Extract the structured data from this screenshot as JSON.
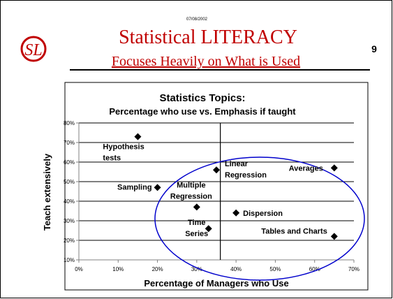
{
  "date": "07/08/2002",
  "title": "Statistical LITERACY",
  "subtitle": "Focuses Heavily on What is Used",
  "page_number": "9",
  "logo": "SL",
  "chart_data": {
    "type": "scatter",
    "title": "Statistics Topics:",
    "subtitle": "Percentage who use vs. Emphasis if taught",
    "x_label": "Percentage of Managers who Use",
    "y_label": "Teach extensively",
    "x": [
      15,
      35,
      65,
      20,
      30,
      40,
      33,
      65
    ],
    "values": [
      73,
      56,
      57,
      47,
      37,
      34,
      26,
      22
    ],
    "point_labels": [
      [
        "Hypothesis",
        "tests"
      ],
      [
        "Linear",
        "Regression"
      ],
      [
        "Averages"
      ],
      [
        "Sampling"
      ],
      [
        "Multiple",
        "Regression"
      ],
      [
        "Dispersion"
      ],
      [
        "Time",
        "Series"
      ],
      [
        "Tables and Charts"
      ]
    ],
    "color": "#000000",
    "reference_x": 36,
    "xlim": [
      0,
      70
    ],
    "ylim": [
      10,
      80
    ],
    "xticks": [
      {
        "value": 0,
        "label": "0%"
      },
      {
        "value": 10,
        "label": "10%"
      },
      {
        "value": 20,
        "label": "20%"
      },
      {
        "value": 30,
        "label": "30%"
      },
      {
        "value": 40,
        "label": "40%"
      },
      {
        "value": 50,
        "label": "50%"
      },
      {
        "value": 60,
        "label": "60%"
      },
      {
        "value": 70,
        "label": "70%"
      }
    ],
    "yticks": [
      {
        "value": 10,
        "label": "10%"
      },
      {
        "value": 20,
        "label": "20%"
      },
      {
        "value": 30,
        "label": "30%"
      },
      {
        "value": 40,
        "label": "40%"
      },
      {
        "value": 50,
        "label": "50%"
      },
      {
        "value": 60,
        "label": "60%"
      },
      {
        "value": 70,
        "label": "70%"
      },
      {
        "value": 80,
        "label": "80%"
      }
    ],
    "grid": true
  }
}
